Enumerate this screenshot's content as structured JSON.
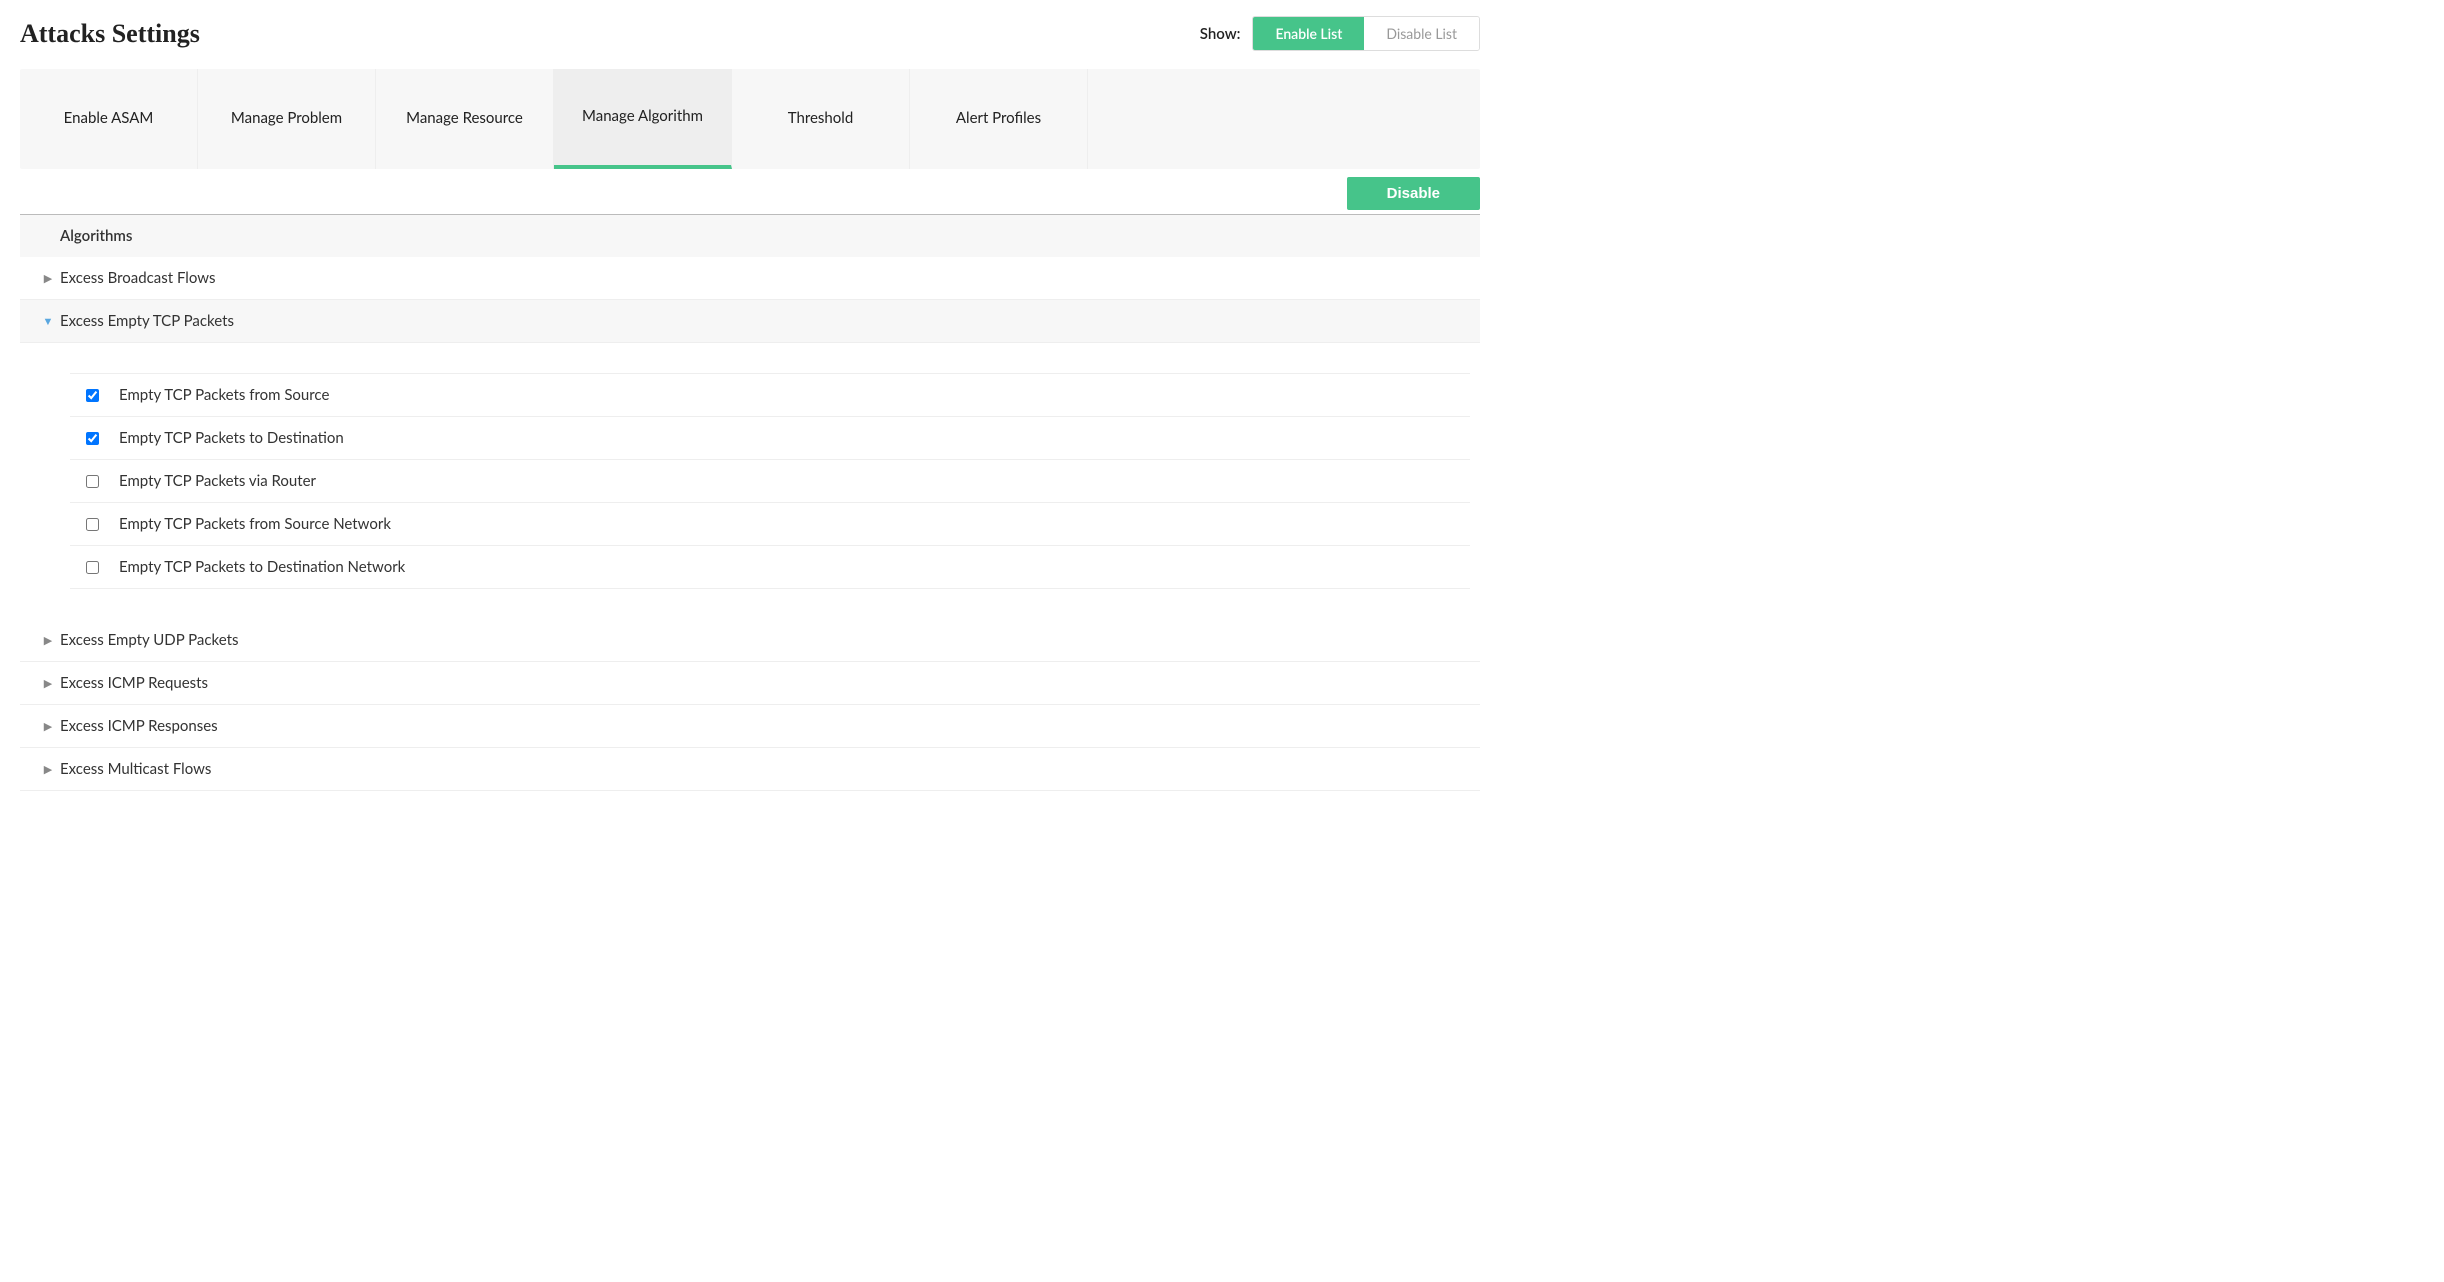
{
  "header": {
    "title": "Attacks Settings",
    "show_label": "Show:",
    "enable_list_label": "Enable List",
    "disable_list_label": "Disable List"
  },
  "tabs": [
    {
      "label": "Enable ASAM",
      "active": false
    },
    {
      "label": "Manage Problem",
      "active": false
    },
    {
      "label": "Manage Resource",
      "active": false
    },
    {
      "label": "Manage Algorithm",
      "active": true
    },
    {
      "label": "Threshold",
      "active": false
    },
    {
      "label": "Alert Profiles",
      "active": false
    }
  ],
  "action": {
    "disable_label": "Disable"
  },
  "table": {
    "column_header": "Algorithms"
  },
  "algorithms": [
    {
      "label": "Excess Broadcast Flows",
      "expanded": false
    },
    {
      "label": "Excess Empty TCP Packets",
      "expanded": true,
      "items": [
        {
          "label": "Empty TCP Packets from Source",
          "checked": true
        },
        {
          "label": "Empty TCP Packets to Destination",
          "checked": true
        },
        {
          "label": "Empty TCP Packets via Router",
          "checked": false
        },
        {
          "label": "Empty TCP Packets from Source Network",
          "checked": false
        },
        {
          "label": "Empty TCP Packets to Destination Network",
          "checked": false
        }
      ]
    },
    {
      "label": "Excess Empty UDP Packets",
      "expanded": false
    },
    {
      "label": "Excess ICMP Requests",
      "expanded": false
    },
    {
      "label": "Excess ICMP Responses",
      "expanded": false
    },
    {
      "label": "Excess Multicast Flows",
      "expanded": false
    }
  ],
  "colors": {
    "accent": "#46c48a",
    "header_bg": "#f7f7f7",
    "active_tab_bg": "#eeeeee",
    "border": "#eeeeee",
    "caret_expanded": "#5aa7e0",
    "caret_collapsed": "#888888",
    "text": "#333333",
    "muted": "#999999"
  }
}
